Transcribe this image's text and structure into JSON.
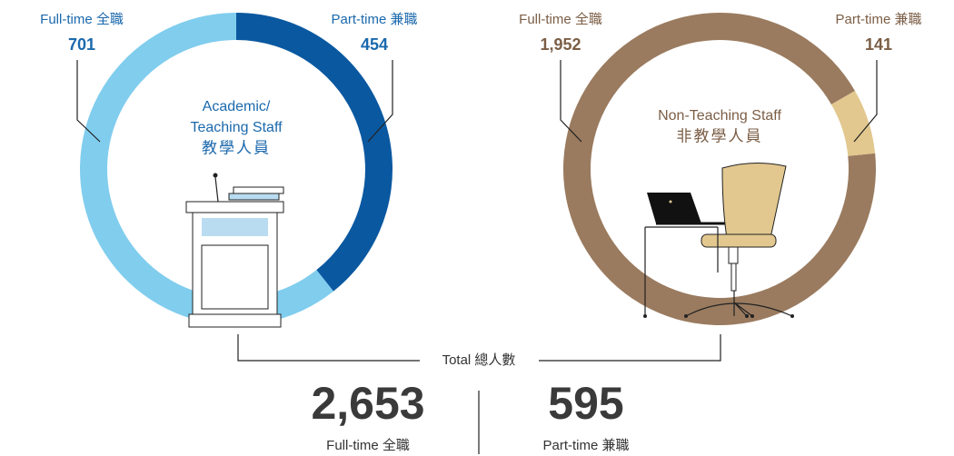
{
  "chart_data": [
    {
      "type": "donut",
      "title_lines": [
        "Academic/",
        "Teaching Staff",
        "教學人員"
      ],
      "categories": [
        "Full-time 全職",
        "Part-time 兼職"
      ],
      "values": [
        701,
        454
      ],
      "value_labels": [
        "701",
        "454"
      ],
      "colors": [
        "#80cdee",
        "#0a58a0"
      ],
      "text_color": "#1b69ad",
      "start_angle": 0
    },
    {
      "type": "donut",
      "title_lines": [
        "Non-Teaching Staff",
        "非教學人員"
      ],
      "categories": [
        "Full-time 全職",
        "Part-time 兼職"
      ],
      "values": [
        1952,
        141
      ],
      "value_labels": [
        "1,952",
        "141"
      ],
      "colors": [
        "#9a7b5f",
        "#e2c88f"
      ],
      "text_color": "#7b5e46",
      "start_angle": 60
    }
  ],
  "summary": {
    "label": "Total 總人數",
    "categories": [
      "Full-time 全職",
      "Part-time 兼職"
    ],
    "values": [
      2653,
      595
    ],
    "value_labels": [
      "2,653",
      "595"
    ]
  }
}
